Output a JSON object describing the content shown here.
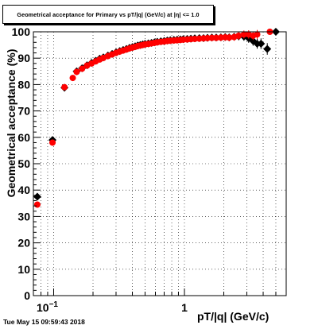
{
  "title": "Geometrical acceptance for Primary vs pT/|q| (GeV/c) at |η| <= 1.0",
  "datestamp": "Tue May 15 09:59:43 2018",
  "chart_data": {
    "type": "scatter",
    "title": "Geometrical acceptance for Primary vs pT/|q| (GeV/c) at |η| <= 1.0",
    "xlabel": "pT/|q| (GeV/c)",
    "ylabel": "Geometrical acceptance (%)",
    "xscale": "log",
    "xlim": [
      0.07,
      6.0
    ],
    "ylim": [
      0,
      100
    ],
    "grid": true,
    "x_tick_labels": [
      {
        "value": 0.1,
        "base": "10",
        "exp": "−1"
      },
      {
        "value": 1,
        "base": "1",
        "exp": ""
      }
    ],
    "y_ticks": [
      0,
      10,
      20,
      30,
      40,
      50,
      60,
      70,
      80,
      90,
      100
    ],
    "series": [
      {
        "color": "#000000",
        "marker": "diamond",
        "x": [
          0.075,
          0.098,
          0.121,
          0.15,
          0.165,
          0.18,
          0.195,
          0.21,
          0.225,
          0.24,
          0.26,
          0.28,
          0.3,
          0.32,
          0.34,
          0.36,
          0.38,
          0.4,
          0.42,
          0.44,
          0.46,
          0.48,
          0.5,
          0.53,
          0.56,
          0.59,
          0.62,
          0.66,
          0.7,
          0.74,
          0.78,
          0.83,
          0.88,
          0.93,
          0.98,
          1.05,
          1.12,
          1.2,
          1.3,
          1.4,
          1.5,
          1.62,
          1.75,
          1.9,
          2.05,
          2.2,
          2.4,
          2.6,
          2.85,
          3.1,
          3.35,
          3.6,
          3.85,
          4.3,
          5.0
        ],
        "y": [
          37.5,
          59,
          78.8,
          85,
          86.2,
          87.3,
          88.2,
          89,
          89.8,
          90.3,
          91,
          91.6,
          92.2,
          92.7,
          93.1,
          93.5,
          93.9,
          94.2,
          94.5,
          94.8,
          95.0,
          95.2,
          95.4,
          95.6,
          95.8,
          96.0,
          96.2,
          96.4,
          96.5,
          96.7,
          96.8,
          96.9,
          97.0,
          97.1,
          97.2,
          97.3,
          97.4,
          97.5,
          97.6,
          97.6,
          97.7,
          97.8,
          97.8,
          97.9,
          98.0,
          97.9,
          98.1,
          98.3,
          98.2,
          97.5,
          96.5,
          95.5,
          95.5,
          93.5,
          100
        ],
        "yerr": [
          1.2,
          1.0,
          0.9,
          0.8,
          0.7,
          0.7,
          0.6,
          0.6,
          0.6,
          0.5,
          0.5,
          0.5,
          0.5,
          0.5,
          0.5,
          0.5,
          0.5,
          0.5,
          0.5,
          0.5,
          0.5,
          0.5,
          0.5,
          0.5,
          0.5,
          0.6,
          0.6,
          0.6,
          0.6,
          0.7,
          0.7,
          0.7,
          0.8,
          0.8,
          0.8,
          0.9,
          0.9,
          1.0,
          1.0,
          1.1,
          1.1,
          1.2,
          1.2,
          1.3,
          1.3,
          1.4,
          1.4,
          1.5,
          1.6,
          1.7,
          1.8,
          1.9,
          2.0,
          2.2,
          0.3
        ]
      },
      {
        "color": "#ff0000",
        "marker": "circle",
        "x": [
          0.075,
          0.098,
          0.121,
          0.14,
          0.15,
          0.165,
          0.18,
          0.195,
          0.21,
          0.225,
          0.24,
          0.26,
          0.28,
          0.3,
          0.32,
          0.34,
          0.36,
          0.38,
          0.4,
          0.42,
          0.44,
          0.46,
          0.48,
          0.5,
          0.53,
          0.56,
          0.59,
          0.62,
          0.66,
          0.7,
          0.74,
          0.78,
          0.83,
          0.88,
          0.93,
          0.98,
          1.05,
          1.12,
          1.2,
          1.3,
          1.4,
          1.5,
          1.62,
          1.75,
          1.9,
          2.05,
          2.2,
          2.4,
          2.6,
          2.85,
          3.1,
          3.35,
          3.6,
          4.5
        ],
        "y": [
          34.5,
          58,
          79,
          82.5,
          84.8,
          86,
          87.2,
          88,
          88.8,
          89.5,
          90.1,
          90.8,
          91.4,
          92,
          92.5,
          92.9,
          93.3,
          93.7,
          94,
          94.3,
          94.6,
          94.8,
          95,
          95.2,
          95.4,
          95.6,
          95.8,
          96,
          96.2,
          96.3,
          96.5,
          96.6,
          96.7,
          96.8,
          96.9,
          97,
          97.1,
          97.2,
          97.3,
          97.4,
          97.5,
          97.6,
          97.7,
          97.7,
          97.8,
          97.9,
          97.8,
          98.0,
          98.5,
          99.0,
          99.0,
          98.5,
          99.0,
          100
        ],
        "yerr": [
          1.2,
          1.0,
          0.9,
          0.8,
          0.8,
          0.7,
          0.7,
          0.6,
          0.6,
          0.6,
          0.5,
          0.5,
          0.5,
          0.5,
          0.5,
          0.5,
          0.5,
          0.5,
          0.5,
          0.5,
          0.5,
          0.5,
          0.5,
          0.5,
          0.5,
          0.5,
          0.6,
          0.6,
          0.6,
          0.6,
          0.7,
          0.7,
          0.7,
          0.8,
          0.8,
          0.8,
          0.9,
          0.9,
          1.0,
          1.0,
          1.1,
          1.1,
          1.2,
          1.2,
          1.3,
          1.3,
          1.4,
          1.4,
          1.5,
          1.5,
          1.6,
          1.6,
          1.7,
          0.3
        ]
      }
    ]
  }
}
